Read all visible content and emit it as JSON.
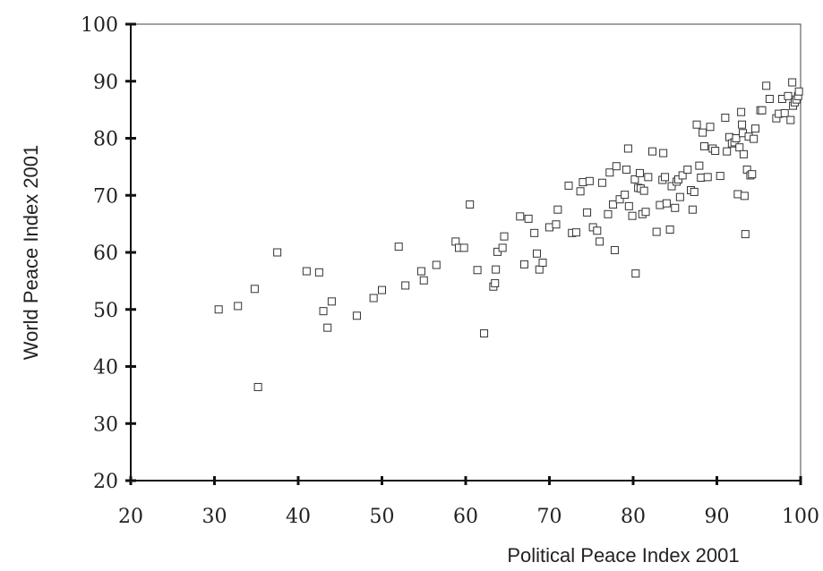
{
  "chart_data": {
    "type": "scatter",
    "title": "",
    "xlabel": "Political Peace Index 2001",
    "ylabel": "World Peace Index 2001",
    "xlim": [
      20,
      100
    ],
    "ylim": [
      20,
      100
    ],
    "xticks": [
      20,
      30,
      40,
      50,
      60,
      70,
      80,
      90,
      100
    ],
    "yticks": [
      20,
      30,
      40,
      50,
      60,
      70,
      80,
      90,
      100
    ],
    "grid": false,
    "marker": "open-square",
    "points": [
      [
        30.5,
        50
      ],
      [
        32.8,
        50.6
      ],
      [
        34.8,
        53.6
      ],
      [
        35.2,
        36.4
      ],
      [
        37.5,
        60
      ],
      [
        41,
        56.7
      ],
      [
        42.5,
        56.5
      ],
      [
        43,
        49.7
      ],
      [
        43.5,
        46.8
      ],
      [
        44,
        51.4
      ],
      [
        47,
        48.9
      ],
      [
        49,
        52
      ],
      [
        50,
        53.4
      ],
      [
        52,
        61
      ],
      [
        52.8,
        54.2
      ],
      [
        54.7,
        56.7
      ],
      [
        55,
        55.1
      ],
      [
        56.5,
        57.8
      ],
      [
        58.8,
        61.9
      ],
      [
        59.2,
        60.8
      ],
      [
        59.8,
        60.8
      ],
      [
        60.5,
        68.4
      ],
      [
        61.4,
        56.9
      ],
      [
        62.2,
        45.8
      ],
      [
        63.3,
        54
      ],
      [
        63.5,
        54.6
      ],
      [
        63.6,
        57
      ],
      [
        63.8,
        60.1
      ],
      [
        64.4,
        60.8
      ],
      [
        64.6,
        62.8
      ],
      [
        66.5,
        66.3
      ],
      [
        67,
        57.9
      ],
      [
        67.5,
        65.9
      ],
      [
        68.2,
        63.4
      ],
      [
        68.5,
        59.8
      ],
      [
        68.8,
        57
      ],
      [
        69.2,
        58.2
      ],
      [
        70,
        64.4
      ],
      [
        70.8,
        64.9
      ],
      [
        71,
        67.5
      ],
      [
        72.3,
        71.7
      ],
      [
        72.7,
        63.4
      ],
      [
        73.2,
        63.5
      ],
      [
        73.7,
        70.7
      ],
      [
        74,
        72.3
      ],
      [
        74.5,
        67
      ],
      [
        74.8,
        72.5
      ],
      [
        75.2,
        64.4
      ],
      [
        75.7,
        63.8
      ],
      [
        76.3,
        72.2
      ],
      [
        76,
        61.9
      ],
      [
        77,
        66.7
      ],
      [
        77.2,
        74
      ],
      [
        77.6,
        68.4
      ],
      [
        77.8,
        60.4
      ],
      [
        78,
        75.1
      ],
      [
        78.4,
        69.3
      ],
      [
        79,
        70.1
      ],
      [
        79.2,
        74.5
      ],
      [
        79.4,
        78.2
      ],
      [
        79.5,
        68.1
      ],
      [
        79.9,
        66.4
      ],
      [
        80.2,
        72.8
      ],
      [
        80.6,
        71.3
      ],
      [
        80.3,
        56.3
      ],
      [
        80.8,
        73.9
      ],
      [
        80.9,
        71.2
      ],
      [
        81.1,
        66.7
      ],
      [
        81.3,
        70.8
      ],
      [
        81.5,
        67.1
      ],
      [
        81.8,
        73.2
      ],
      [
        82.3,
        77.7
      ],
      [
        82.8,
        63.6
      ],
      [
        83.2,
        68.3
      ],
      [
        83.5,
        72.7
      ],
      [
        83.6,
        77.4
      ],
      [
        83.8,
        73.2
      ],
      [
        84,
        68.6
      ],
      [
        84.4,
        64
      ],
      [
        84.6,
        71.6
      ],
      [
        85,
        67.8
      ],
      [
        85.2,
        72.4
      ],
      [
        85.4,
        72.8
      ],
      [
        85.6,
        69.7
      ],
      [
        85.9,
        73.5
      ],
      [
        86.5,
        74.5
      ],
      [
        86.9,
        70.9
      ],
      [
        87.1,
        67.5
      ],
      [
        87.3,
        70.6
      ],
      [
        87.6,
        82.4
      ],
      [
        87.9,
        75.2
      ],
      [
        88.1,
        73.1
      ],
      [
        88.3,
        81
      ],
      [
        88.5,
        78.6
      ],
      [
        88.9,
        73.2
      ],
      [
        89.2,
        82
      ],
      [
        89.5,
        78.2
      ],
      [
        89.8,
        77.8
      ],
      [
        90.4,
        73.4
      ],
      [
        91,
        83.6
      ],
      [
        91.2,
        77.7
      ],
      [
        91.5,
        80.2
      ],
      [
        91.8,
        79.1
      ],
      [
        92.1,
        79.3
      ],
      [
        92.3,
        80
      ],
      [
        92.5,
        70.2
      ],
      [
        92.7,
        78.4
      ],
      [
        92.9,
        84.6
      ],
      [
        93,
        82.4
      ],
      [
        93.1,
        80.9
      ],
      [
        93.2,
        77.2
      ],
      [
        93.3,
        69.9
      ],
      [
        93.4,
        63.2
      ],
      [
        93.6,
        74.5
      ],
      [
        93.8,
        80.3
      ],
      [
        94,
        73.5
      ],
      [
        94.2,
        73.7
      ],
      [
        94.4,
        79.9
      ],
      [
        94.6,
        81.7
      ],
      [
        95.2,
        84.9
      ],
      [
        95.4,
        84.9
      ],
      [
        95.9,
        89.2
      ],
      [
        96.3,
        86.9
      ],
      [
        97.1,
        83.5
      ],
      [
        97.4,
        84.3
      ],
      [
        97.8,
        86.9
      ],
      [
        98.1,
        84.4
      ],
      [
        98.5,
        87.4
      ],
      [
        98.8,
        83.2
      ],
      [
        99,
        89.8
      ],
      [
        99.1,
        85.7
      ],
      [
        99.3,
        86.3
      ],
      [
        99.5,
        86.8
      ],
      [
        99.7,
        87.4
      ],
      [
        99.8,
        88.2
      ]
    ]
  }
}
